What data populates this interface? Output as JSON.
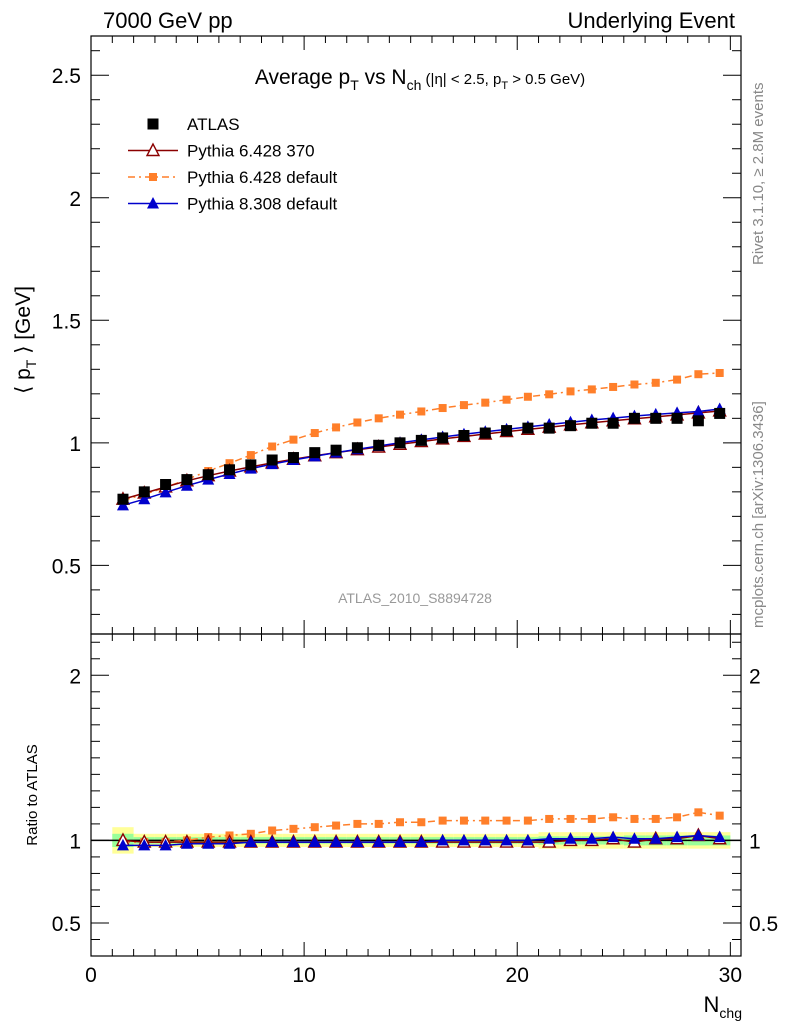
{
  "header": {
    "left": "7000 GeV pp",
    "right": "Underlying Event"
  },
  "side_labels": {
    "top": "Rivet 3.1.10, ≥ 2.8M events",
    "bottom": "mcplots.cern.ch [arXiv:1306.3436]"
  },
  "watermark": "ATLAS_2010_S8894728",
  "colors": {
    "atlas": "#000000",
    "p6_370": "#8b0000",
    "p6_default": "#ff7f2a",
    "p8_default": "#0000cc",
    "band_yellow": "#ffff99",
    "band_green": "#99ff99"
  },
  "chart_data": [
    {
      "type": "scatter",
      "title_parts": {
        "t1": "Average p",
        "t1sub": "T",
        "t2": " vs N",
        "t2sub": "ch",
        "t3": " (|η| < 2.5, p",
        "t3sub": "T",
        "t4": " > 0.5 GeV)"
      },
      "ylabel_parts": {
        "a": "⟨ p",
        "sub": "T",
        "b": " ⟩ [GeV]"
      },
      "xlim": [
        0,
        30.5
      ],
      "ylim": [
        0.22,
        2.66
      ],
      "yticks": [
        {
          "v": 0.5,
          "label": "0.5"
        },
        {
          "v": 1,
          "label": "1"
        },
        {
          "v": 1.5,
          "label": "1.5"
        },
        {
          "v": 2,
          "label": "2"
        },
        {
          "v": 2.5,
          "label": "2.5"
        }
      ],
      "x": [
        1.5,
        2.5,
        3.5,
        4.5,
        5.5,
        6.5,
        7.5,
        8.5,
        9.5,
        10.5,
        11.5,
        12.5,
        13.5,
        14.5,
        15.5,
        16.5,
        17.5,
        18.5,
        19.5,
        20.5,
        21.5,
        22.5,
        23.5,
        24.5,
        25.5,
        26.5,
        27.5,
        28.5,
        29.5
      ],
      "series": [
        {
          "key": "atlas",
          "name": "ATLAS",
          "marker": "square",
          "line": "none",
          "values": [
            0.77,
            0.8,
            0.83,
            0.85,
            0.87,
            0.89,
            0.91,
            0.93,
            0.94,
            0.96,
            0.97,
            0.98,
            0.99,
            1.0,
            1.01,
            1.02,
            1.03,
            1.04,
            1.05,
            1.06,
            1.06,
            1.07,
            1.08,
            1.08,
            1.1,
            1.1,
            1.1,
            1.09,
            1.12
          ]
        },
        {
          "key": "p6_370",
          "name": "Pythia 6.428 370",
          "marker": "triangle-open",
          "line": "solid",
          "values": [
            0.77,
            0.795,
            0.82,
            0.845,
            0.866,
            0.885,
            0.902,
            0.918,
            0.933,
            0.947,
            0.96,
            0.972,
            0.983,
            0.994,
            1.005,
            1.016,
            1.026,
            1.036,
            1.046,
            1.055,
            1.064,
            1.073,
            1.082,
            1.09,
            1.098,
            1.106,
            1.114,
            1.122,
            1.13
          ]
        },
        {
          "key": "p6_default",
          "name": "Pythia 6.428 default",
          "marker": "square-small",
          "line": "dashdot",
          "values": [
            0.765,
            0.79,
            0.818,
            0.851,
            0.885,
            0.917,
            0.95,
            0.985,
            1.013,
            1.04,
            1.063,
            1.083,
            1.1,
            1.115,
            1.128,
            1.142,
            1.154,
            1.164,
            1.176,
            1.188,
            1.198,
            1.21,
            1.218,
            1.228,
            1.238,
            1.245,
            1.258,
            1.28,
            1.285
          ]
        },
        {
          "key": "p8_default",
          "name": "Pythia 8.308 default",
          "marker": "triangle",
          "line": "solid",
          "values": [
            0.745,
            0.77,
            0.798,
            0.825,
            0.85,
            0.873,
            0.895,
            0.913,
            0.93,
            0.945,
            0.96,
            0.974,
            0.987,
            1.0,
            1.012,
            1.024,
            1.035,
            1.045,
            1.055,
            1.065,
            1.075,
            1.084,
            1.093,
            1.101,
            1.109,
            1.116,
            1.122,
            1.128,
            1.138
          ]
        }
      ]
    },
    {
      "type": "scatter",
      "ylabel": "Ratio to ATLAS",
      "xlabel_parts": {
        "a": "N",
        "sub": "chg"
      },
      "xlim": [
        0,
        30.5
      ],
      "ylim": [
        0.3,
        2.25
      ],
      "xticks": [
        {
          "v": 0,
          "label": "0"
        },
        {
          "v": 10,
          "label": "10"
        },
        {
          "v": 20,
          "label": "20"
        },
        {
          "v": 30,
          "label": "30"
        }
      ],
      "yticks": [
        {
          "v": 0.5,
          "label": "0.5"
        },
        {
          "v": 1,
          "label": "1"
        },
        {
          "v": 2,
          "label": "2"
        }
      ],
      "band_yellow": [
        0.08,
        0.04,
        0.04,
        0.04,
        0.04,
        0.04,
        0.04,
        0.04,
        0.04,
        0.04,
        0.04,
        0.04,
        0.04,
        0.04,
        0.04,
        0.04,
        0.04,
        0.04,
        0.04,
        0.04,
        0.05,
        0.05,
        0.05,
        0.05,
        0.05,
        0.05,
        0.05,
        0.05,
        0.05
      ],
      "band_green": [
        0.04,
        0.02,
        0.02,
        0.02,
        0.02,
        0.02,
        0.02,
        0.02,
        0.02,
        0.02,
        0.02,
        0.02,
        0.02,
        0.02,
        0.02,
        0.02,
        0.02,
        0.02,
        0.02,
        0.02,
        0.025,
        0.025,
        0.025,
        0.025,
        0.03,
        0.03,
        0.03,
        0.03,
        0.03
      ],
      "series": [
        {
          "key": "p6_370",
          "name": "Pythia 6.428 370",
          "marker": "triangle-open",
          "line": "solid",
          "values": [
            1.0,
            0.99,
            0.99,
            0.99,
            0.99,
            0.99,
            0.99,
            0.99,
            0.99,
            0.99,
            0.99,
            0.99,
            0.99,
            0.99,
            0.99,
            0.99,
            0.99,
            0.99,
            0.99,
            0.99,
            0.99,
            1.0,
            1.0,
            1.01,
            0.99,
            1.01,
            1.01,
            1.03,
            1.01
          ]
        },
        {
          "key": "p6_default",
          "name": "Pythia 6.428 default",
          "marker": "square-small",
          "line": "dashdot",
          "values": [
            0.99,
            0.99,
            0.99,
            1.0,
            1.02,
            1.03,
            1.04,
            1.06,
            1.07,
            1.08,
            1.09,
            1.1,
            1.1,
            1.11,
            1.11,
            1.12,
            1.12,
            1.12,
            1.12,
            1.12,
            1.13,
            1.13,
            1.13,
            1.14,
            1.13,
            1.13,
            1.14,
            1.17,
            1.15
          ]
        },
        {
          "key": "p8_default",
          "name": "Pythia 8.308 default",
          "marker": "triangle",
          "line": "solid",
          "values": [
            0.97,
            0.97,
            0.97,
            0.98,
            0.98,
            0.98,
            0.99,
            0.99,
            0.99,
            0.99,
            0.99,
            0.99,
            0.99,
            0.99,
            0.99,
            1.0,
            1.0,
            1.0,
            1.0,
            1.0,
            1.01,
            1.01,
            1.01,
            1.02,
            1.01,
            1.01,
            1.02,
            1.03,
            1.02
          ]
        }
      ]
    }
  ]
}
